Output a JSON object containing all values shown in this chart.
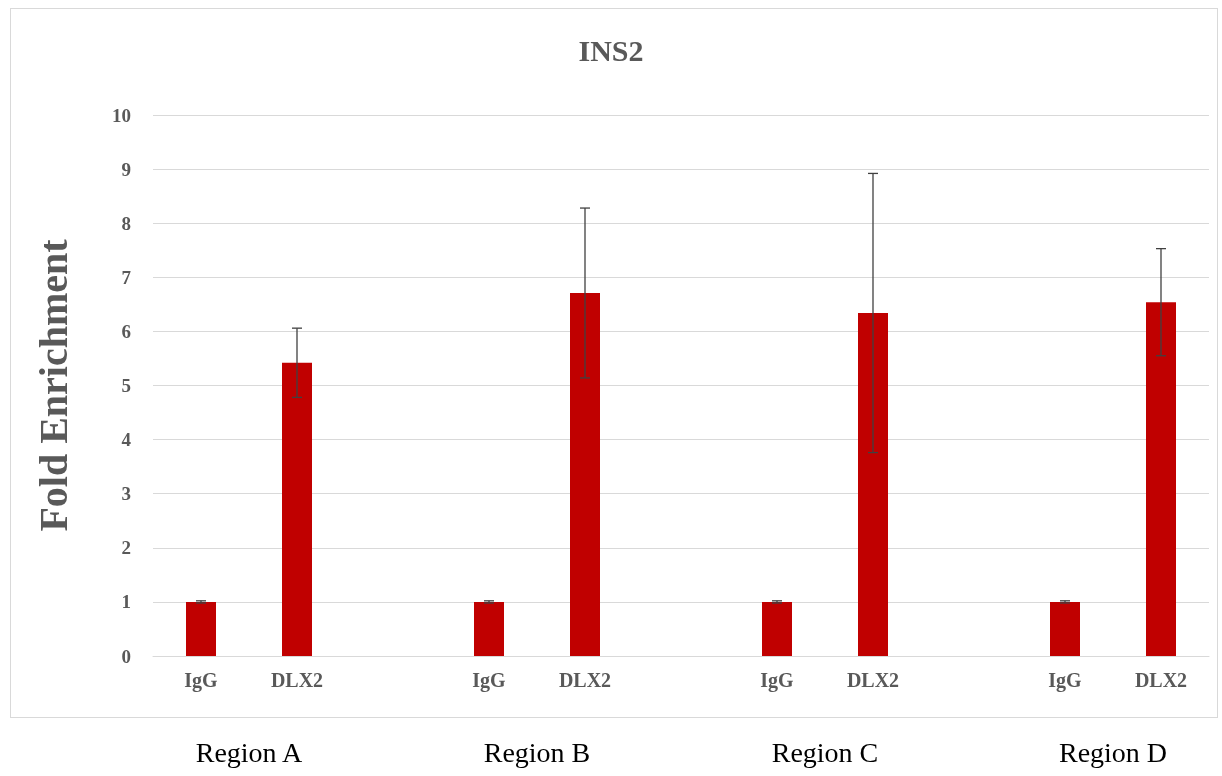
{
  "chart_data": {
    "type": "bar",
    "title": "INS2",
    "ylabel": "Fold Enrichment",
    "categories": [
      "IgG",
      "DLX2",
      null,
      "IgG",
      "DLX2",
      null,
      "IgG",
      "DLX2",
      null,
      "IgG",
      "DLX2"
    ],
    "values": [
      1,
      5.42,
      null,
      1,
      6.71,
      null,
      1,
      6.34,
      null,
      1,
      6.54
    ],
    "errors": [
      0.02,
      0.64,
      null,
      0.02,
      1.57,
      null,
      0.02,
      2.58,
      null,
      0.02,
      0.99
    ],
    "color": "#c00000",
    "ylim": [
      0,
      10
    ],
    "yticks": [
      0,
      1,
      2,
      3,
      4,
      5,
      6,
      7,
      8,
      9,
      10
    ],
    "grid": "y",
    "annotations": [
      "Region A",
      "Region B",
      "Region C",
      "Region D"
    ]
  }
}
